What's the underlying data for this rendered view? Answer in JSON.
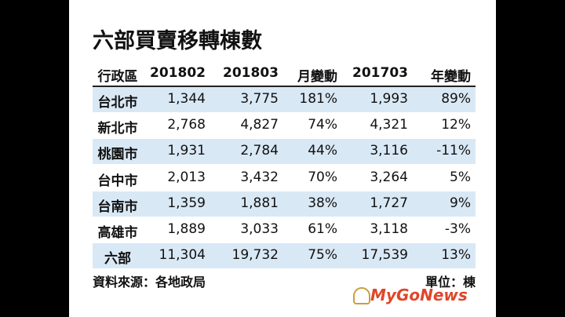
{
  "title": "六部買賣移轉棟數",
  "table": {
    "headers": [
      "行政區",
      "201802",
      "201803",
      "月變動",
      "201703",
      "年變動"
    ],
    "rows": [
      [
        "台北市",
        "1,344",
        "3,775",
        "181%",
        "1,993",
        "89%"
      ],
      [
        "新北市",
        "2,768",
        "4,827",
        "74%",
        "4,321",
        "12%"
      ],
      [
        "桃園市",
        "1,931",
        "2,784",
        "44%",
        "3,116",
        "-11%"
      ],
      [
        "台中市",
        "2,013",
        "3,432",
        "70%",
        "3,264",
        "5%"
      ],
      [
        "台南市",
        "1,359",
        "1,881",
        "38%",
        "1,727",
        "9%"
      ],
      [
        "高雄市",
        "1,889",
        "3,033",
        "61%",
        "3,118",
        "-3%"
      ],
      [
        "六部",
        "11,304",
        "19,732",
        "75%",
        "17,539",
        "13%"
      ]
    ]
  },
  "source": "資料來源：各地政局",
  "unit": "單位：棟",
  "logo": "MyGoNews"
}
